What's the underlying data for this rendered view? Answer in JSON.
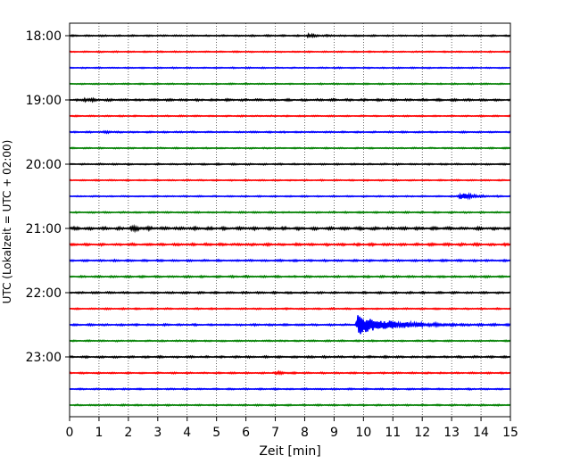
{
  "chart_data": {
    "type": "line",
    "title": "",
    "xlabel": "Zeit  [min]",
    "ylabel": "UTC (Lokalzeit = UTC + 02:00)",
    "xlim": [
      0,
      15
    ],
    "x_ticks": [
      0,
      1,
      2,
      3,
      4,
      5,
      6,
      7,
      8,
      9,
      10,
      11,
      12,
      13,
      14,
      15
    ],
    "y_ticks": [
      {
        "label": "18:00",
        "row": 0
      },
      {
        "label": "19:00",
        "row": 4
      },
      {
        "label": "20:00",
        "row": 8
      },
      {
        "label": "21:00",
        "row": 12
      },
      {
        "label": "22:00",
        "row": 16
      },
      {
        "label": "23:00",
        "row": 20
      }
    ],
    "grid": "vertical dotted",
    "trace_minutes": 15,
    "color_cycle": [
      "#000000",
      "#ff0000",
      "#0000ff",
      "#008000"
    ],
    "traces": [
      {
        "start": "18:00",
        "noise": 0.35,
        "events": [
          {
            "t": 8.1,
            "amp": 1.0,
            "decay": 0.3
          }
        ]
      },
      {
        "start": "18:15",
        "noise": 0.3,
        "events": []
      },
      {
        "start": "18:30",
        "noise": 0.3,
        "events": []
      },
      {
        "start": "18:45",
        "noise": 0.3,
        "events": []
      },
      {
        "start": "19:00",
        "noise": 0.5,
        "events": [
          {
            "t": 0.5,
            "amp": 1.2,
            "decay": 0.2
          }
        ]
      },
      {
        "start": "19:15",
        "noise": 0.3,
        "events": []
      },
      {
        "start": "19:30",
        "noise": 0.35,
        "events": [
          {
            "t": 1.2,
            "amp": 0.8,
            "decay": 0.2
          }
        ]
      },
      {
        "start": "19:45",
        "noise": 0.3,
        "events": []
      },
      {
        "start": "20:00",
        "noise": 0.35,
        "events": []
      },
      {
        "start": "20:15",
        "noise": 0.3,
        "events": []
      },
      {
        "start": "20:30",
        "noise": 0.3,
        "events": [
          {
            "t": 13.3,
            "amp": 3.2,
            "decay": 0.35
          }
        ]
      },
      {
        "start": "20:45",
        "noise": 0.35,
        "events": []
      },
      {
        "start": "21:00",
        "noise": 0.7,
        "events": [
          {
            "t": 2.1,
            "amp": 1.3,
            "decay": 0.3
          }
        ]
      },
      {
        "start": "21:15",
        "noise": 0.6,
        "events": []
      },
      {
        "start": "21:30",
        "noise": 0.45,
        "events": []
      },
      {
        "start": "21:45",
        "noise": 0.45,
        "events": []
      },
      {
        "start": "22:00",
        "noise": 0.45,
        "events": []
      },
      {
        "start": "22:15",
        "noise": 0.35,
        "events": []
      },
      {
        "start": "22:30",
        "noise": 0.45,
        "events": [
          {
            "t": 9.8,
            "amp": 7.5,
            "decay": 1.1
          }
        ]
      },
      {
        "start": "22:45",
        "noise": 0.35,
        "events": []
      },
      {
        "start": "23:00",
        "noise": 0.45,
        "events": []
      },
      {
        "start": "23:15",
        "noise": 0.35,
        "events": [
          {
            "t": 7.0,
            "amp": 0.8,
            "decay": 0.3
          }
        ]
      },
      {
        "start": "23:30",
        "noise": 0.35,
        "events": []
      },
      {
        "start": "23:45",
        "noise": 0.35,
        "events": []
      }
    ]
  }
}
